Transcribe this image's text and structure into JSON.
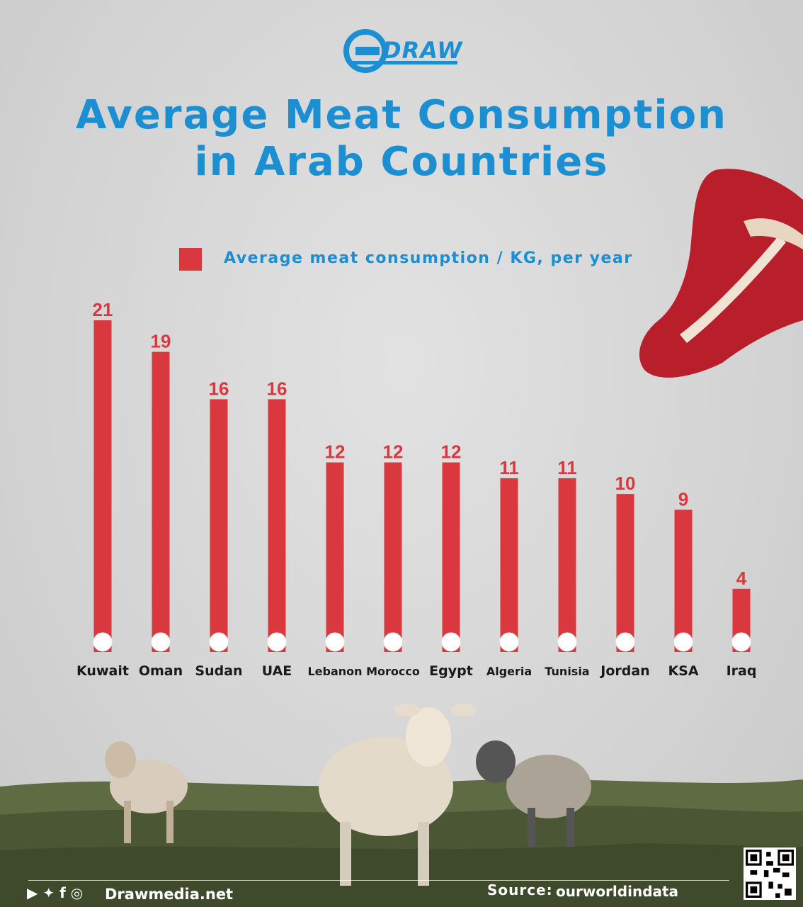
{
  "brand": {
    "logo_text": "DRAW"
  },
  "title": {
    "line1": "Average Meat Consumption",
    "line2": "in Arab Countries"
  },
  "legend": {
    "label": "Average meat consumption / KG, per year",
    "color": "#d9383f"
  },
  "chart_data": {
    "type": "bar",
    "categories": [
      "Kuwait",
      "Oman",
      "Sudan",
      "UAE",
      "Lebanon",
      "Morocco",
      "Egypt",
      "Algeria",
      "Tunisia",
      "Jordan",
      "KSA",
      "Iraq"
    ],
    "values": [
      21,
      19,
      16,
      16,
      12,
      12,
      12,
      11,
      11,
      10,
      9,
      4
    ],
    "ylim": [
      0,
      21
    ],
    "bar_color": "#d9383f",
    "label_color": "#d9383f"
  },
  "footer": {
    "site": "Drawmedia.net",
    "source_label": "Source:",
    "source_value": "ourworldindata"
  },
  "colors": {
    "accent": "#1b8fd1",
    "bar": "#d9383f"
  },
  "icons": [
    "youtube-icon",
    "twitter-icon",
    "facebook-icon",
    "instagram-icon",
    "qr-code-icon",
    "steak-image",
    "sheep-image"
  ]
}
